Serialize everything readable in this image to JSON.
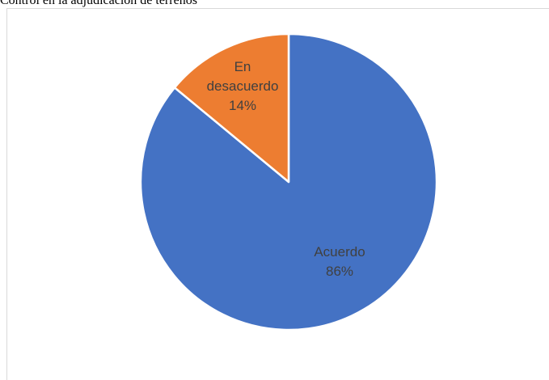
{
  "page": {
    "heading": "Control en la adjudicación de terrenos"
  },
  "chart_data": {
    "type": "pie",
    "title": "",
    "slices": [
      {
        "label": "Acuerdo",
        "value": 86,
        "percent_label": "86%",
        "color": "#4472C4"
      },
      {
        "label": "En desacuerdo",
        "value": 14,
        "percent_label": "14%",
        "color": "#ED7D31"
      }
    ],
    "legend": "none",
    "start": "top",
    "direction": "clockwise",
    "slice_border_color": "#ffffff"
  }
}
